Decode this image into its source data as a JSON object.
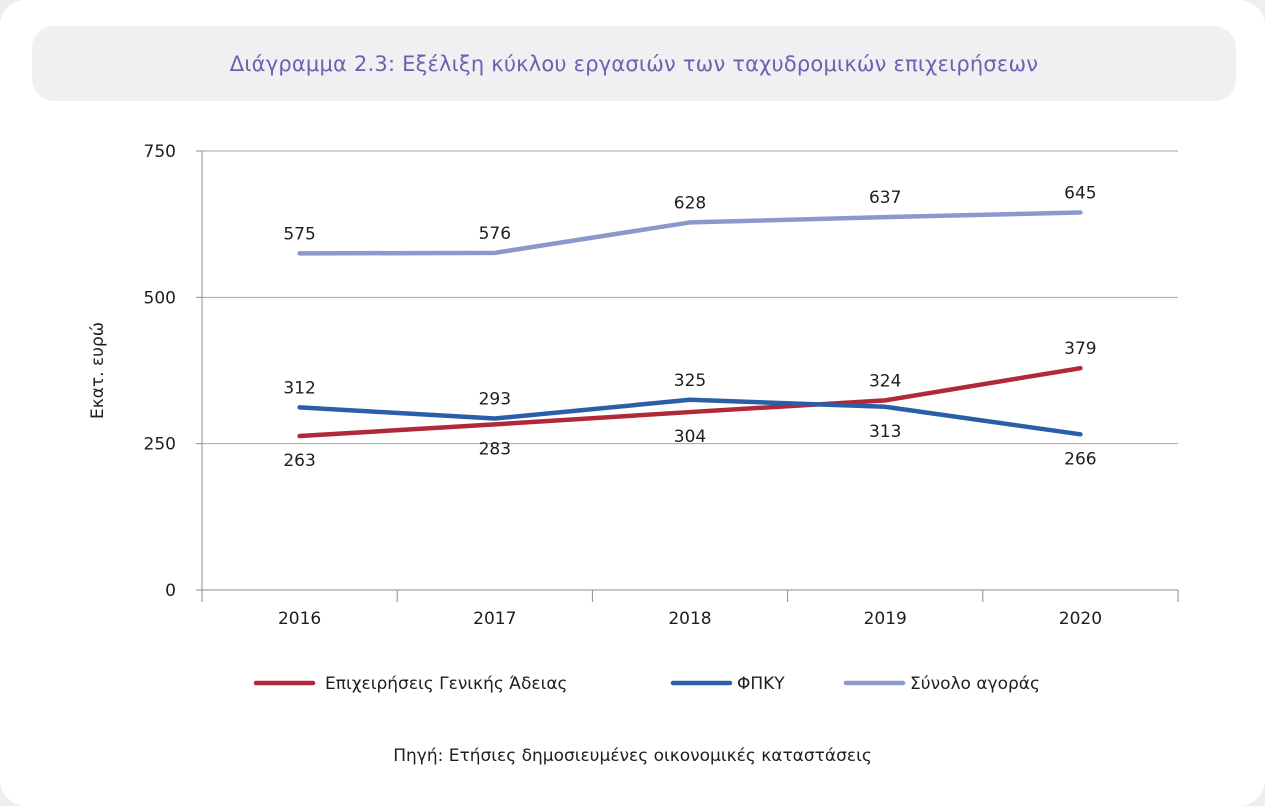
{
  "chart_data": {
    "type": "line",
    "title": "Διάγραμμα 2.3: Εξέλιξη κύκλου εργασιών των ταχυδρομικών επιχειρήσεων",
    "ylabel": "Εκατ. ευρώ",
    "xlabel": "",
    "categories": [
      "2016",
      "2017",
      "2018",
      "2019",
      "2020"
    ],
    "ylim": [
      0,
      750
    ],
    "yticks": [
      "0",
      "250",
      "500",
      "750"
    ],
    "grid": true,
    "legend_position": "bottom",
    "series": [
      {
        "name": "Επιχειρήσεις Γενικής Άδειας",
        "values": [
          263,
          283,
          304,
          324,
          379
        ],
        "labels": [
          "263",
          "283",
          "304",
          "324",
          "379"
        ],
        "color": "#b0283a",
        "label_side": [
          "below",
          "below",
          "below",
          "above",
          "above"
        ]
      },
      {
        "name": "ΦΠΚΥ",
        "values": [
          312,
          293,
          325,
          313,
          266
        ],
        "labels": [
          "312",
          "293",
          "325",
          "313",
          "266"
        ],
        "color": "#2a5fa8",
        "label_side": [
          "above",
          "above",
          "above",
          "below",
          "below"
        ]
      },
      {
        "name": "Σύνολο αγοράς",
        "values": [
          575,
          576,
          628,
          637,
          645
        ],
        "labels": [
          "575",
          "576",
          "628",
          "637",
          "645"
        ],
        "color": "#8b98cc",
        "label_side": [
          "above",
          "above",
          "above",
          "above",
          "above"
        ]
      }
    ],
    "source": "Πηγή: Ετήσιες δημοσιευμένες οικονομικές καταστάσεις"
  }
}
